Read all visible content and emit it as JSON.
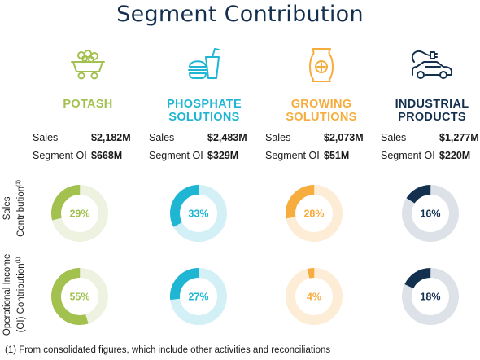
{
  "title": "Segment Contribution",
  "colors": {
    "title": "#13304f",
    "potash": "#a2c14f",
    "potash_track": "#eef2e0",
    "phosphate": "#1fb6d4",
    "phosphate_track": "#d2f0f6",
    "growing": "#f7ad3e",
    "growing_track": "#fdecd6",
    "industrial": "#13304f",
    "industrial_track": "#dde2e8"
  },
  "row_labels": {
    "sales": "Sales",
    "sales_line2": "Contribution",
    "sales_sup": "(1)",
    "oi": "Operational Income",
    "oi_line2": "(OI) Contribution",
    "oi_sup": "(1)"
  },
  "metric_labels": {
    "sales": "Sales",
    "oi": "Segment OI"
  },
  "segments": [
    {
      "key": "potash",
      "icon": "mine-cart-icon",
      "name_line1": "POTASH",
      "name_line2": "",
      "sales": "$2,182M",
      "oi": "$668M",
      "sales_pct_label": "29%",
      "oi_pct_label": "55%"
    },
    {
      "key": "phosphate",
      "icon": "burger-drink-icon",
      "name_line1": "PHOSPHATE",
      "name_line2": "SOLUTIONS",
      "sales": "$2,483M",
      "oi": "$329M",
      "sales_pct_label": "33%",
      "oi_pct_label": "27%"
    },
    {
      "key": "growing",
      "icon": "seed-bag-icon",
      "name_line1": "GROWING",
      "name_line2": "SOLUTIONS",
      "sales": "$2,073M",
      "oi": "$51M",
      "sales_pct_label": "28%",
      "oi_pct_label": "4%"
    },
    {
      "key": "industrial",
      "icon": "electric-car-icon",
      "name_line1": "INDUSTRIAL",
      "name_line2": "PRODUCTS",
      "sales": "$1,277M",
      "oi": "$220M",
      "sales_pct_label": "16%",
      "oi_pct_label": "18%"
    }
  ],
  "chart_data": [
    {
      "type": "pie",
      "title": "Sales Contribution",
      "categories": [
        "POTASH",
        "PHOSPHATE SOLUTIONS",
        "GROWING SOLUTIONS",
        "INDUSTRIAL PRODUCTS"
      ],
      "values": [
        29,
        33,
        28,
        16
      ]
    },
    {
      "type": "pie",
      "title": "Operational Income (OI) Contribution",
      "categories": [
        "POTASH",
        "PHOSPHATE SOLUTIONS",
        "GROWING SOLUTIONS",
        "INDUSTRIAL PRODUCTS"
      ],
      "values": [
        55,
        27,
        4,
        18
      ]
    }
  ],
  "footnote": "(1) From consolidated figures, which include other activities and reconciliations"
}
